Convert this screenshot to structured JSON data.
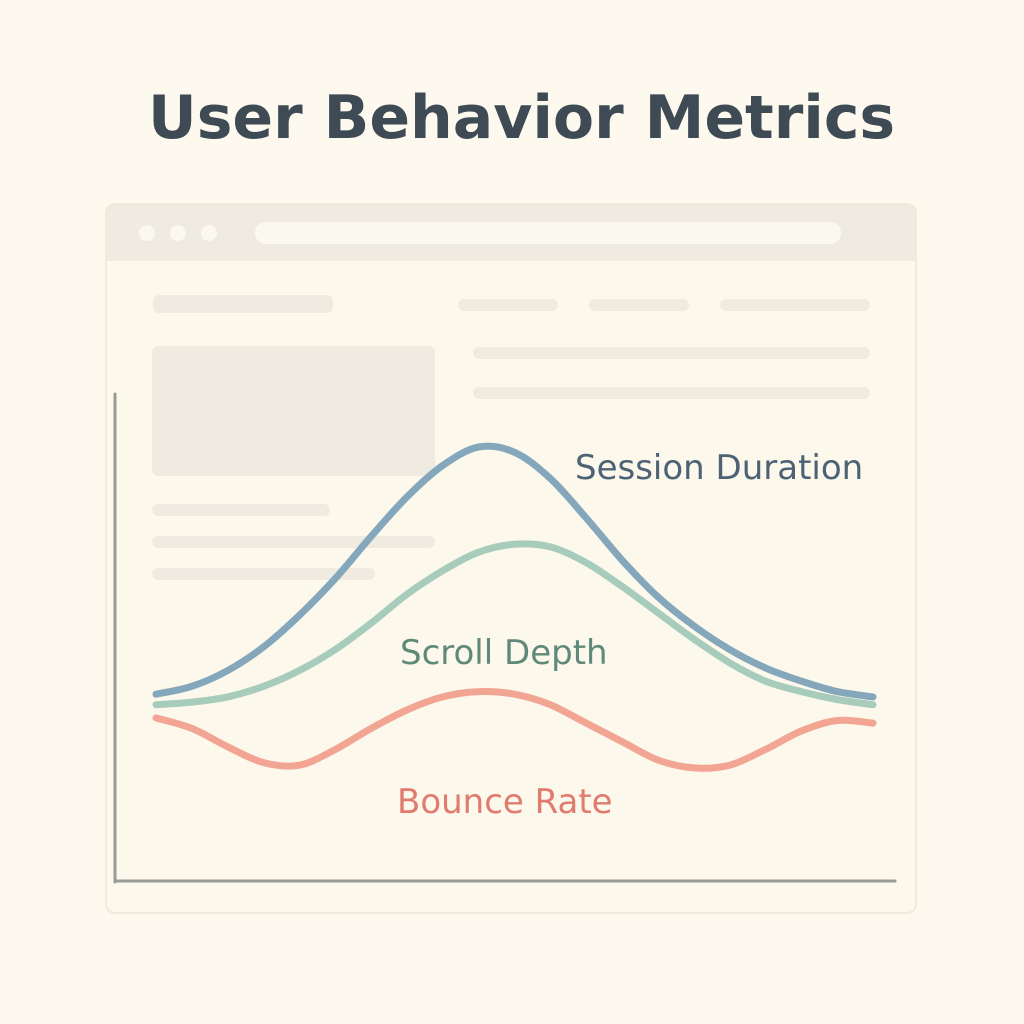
{
  "title": "User Behavior Metrics",
  "chart_data": {
    "type": "line",
    "title": "User Behavior Metrics",
    "xlabel": "",
    "ylabel": "",
    "grid": false,
    "legend": "inline labels",
    "series": [
      {
        "name": "Session Duration",
        "color": "#84a7bb",
        "label_color": "#4d6275",
        "x": [
          0,
          0.05,
          0.1,
          0.15,
          0.2,
          0.25,
          0.3,
          0.35,
          0.4,
          0.45,
          0.5,
          0.55,
          0.6,
          0.65,
          0.7,
          0.75,
          0.8,
          0.85,
          0.9,
          0.95,
          1
        ],
        "y": [
          0.06,
          0.09,
          0.15,
          0.24,
          0.36,
          0.5,
          0.66,
          0.81,
          0.93,
          1.0,
          0.98,
          0.88,
          0.73,
          0.57,
          0.43,
          0.32,
          0.23,
          0.16,
          0.11,
          0.07,
          0.05
        ]
      },
      {
        "name": "Scroll Depth",
        "color": "#a7ccbc",
        "label_color": "#5f8978",
        "x": [
          0,
          0.05,
          0.1,
          0.15,
          0.2,
          0.25,
          0.3,
          0.35,
          0.4,
          0.45,
          0.5,
          0.55,
          0.6,
          0.65,
          0.7,
          0.75,
          0.8,
          0.85,
          0.9,
          0.95,
          1
        ],
        "y": [
          0.02,
          0.03,
          0.05,
          0.09,
          0.15,
          0.23,
          0.33,
          0.44,
          0.53,
          0.6,
          0.63,
          0.62,
          0.56,
          0.47,
          0.37,
          0.27,
          0.18,
          0.11,
          0.07,
          0.04,
          0.02
        ]
      },
      {
        "name": "Bounce Rate",
        "color": "#f2a593",
        "label_color": "#e07b6e",
        "x": [
          0,
          0.05,
          0.1,
          0.15,
          0.2,
          0.25,
          0.3,
          0.35,
          0.4,
          0.45,
          0.5,
          0.55,
          0.6,
          0.65,
          0.7,
          0.75,
          0.8,
          0.85,
          0.9,
          0.95,
          1
        ],
        "y": [
          -0.03,
          -0.07,
          -0.14,
          -0.2,
          -0.21,
          -0.15,
          -0.07,
          0.0,
          0.05,
          0.07,
          0.06,
          0.02,
          -0.05,
          -0.12,
          -0.19,
          -0.22,
          -0.21,
          -0.15,
          -0.08,
          -0.04,
          -0.05
        ]
      }
    ]
  }
}
